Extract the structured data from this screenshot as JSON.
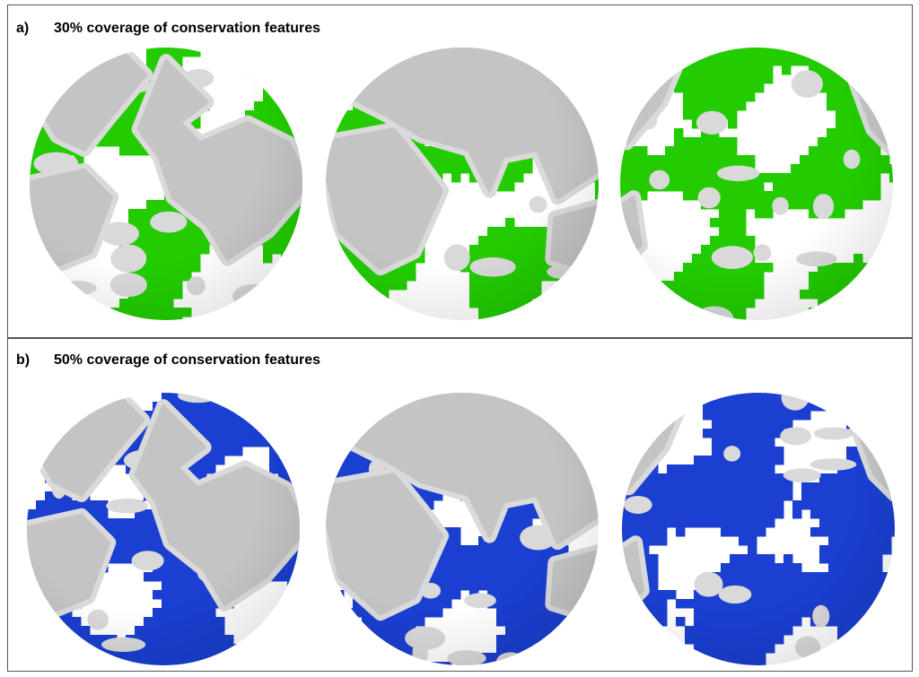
{
  "panels": [
    {
      "label": "a)",
      "title": "30% coverage of conservation features"
    },
    {
      "label": "b)",
      "title": "50% coverage of conservation features"
    }
  ]
}
